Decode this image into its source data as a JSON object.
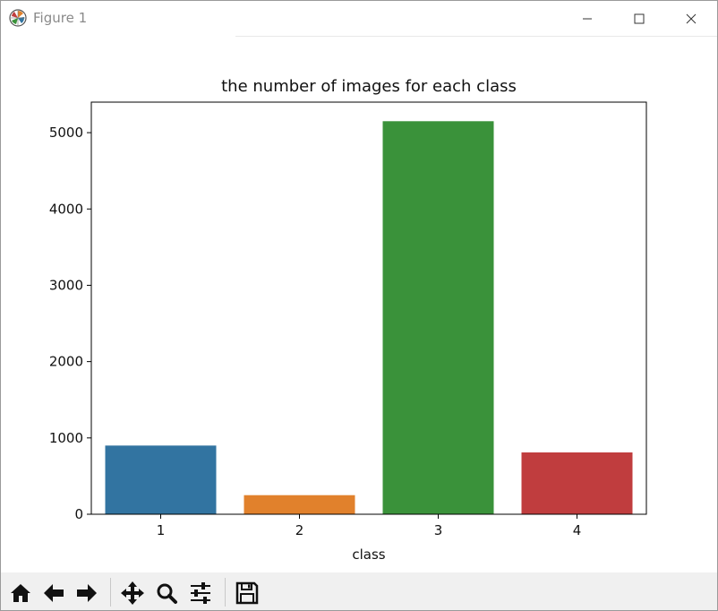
{
  "window": {
    "title": "Figure 1"
  },
  "toolbar": {
    "items": [
      {
        "name": "home-icon"
      },
      {
        "name": "back-arrow-icon"
      },
      {
        "name": "forward-arrow-icon"
      },
      {
        "name": "pan-icon"
      },
      {
        "name": "zoom-icon"
      },
      {
        "name": "configure-subplots-icon"
      },
      {
        "name": "save-icon"
      }
    ]
  },
  "chart_data": {
    "type": "bar",
    "title": "the number of images for each class",
    "xlabel": "class",
    "ylabel": "",
    "categories": [
      "1",
      "2",
      "3",
      "4"
    ],
    "values": [
      900,
      250,
      5150,
      810
    ],
    "colors": [
      "#3274a1",
      "#e1812c",
      "#3a923a",
      "#c03d3e"
    ],
    "ylim": [
      0,
      5400
    ],
    "yticks": [
      0,
      1000,
      2000,
      3000,
      4000,
      5000
    ],
    "grid": false,
    "legend": "none"
  }
}
